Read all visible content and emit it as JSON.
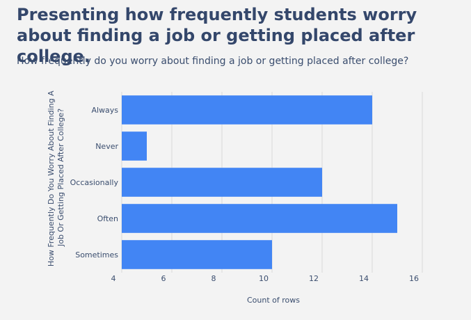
{
  "header": {
    "title": "Presenting how frequently students worry about finding a job or getting placed after college.",
    "subtitle": "How frequently do you worry about finding a job or getting placed after college?"
  },
  "chart_data": {
    "type": "bar",
    "orientation": "horizontal",
    "categories": [
      "Always",
      "Never",
      "Occasionally",
      "Often",
      "Sometimes"
    ],
    "values": [
      14,
      5,
      12,
      15,
      10
    ],
    "xlabel": "Count of rows",
    "ylabel": "How Frequently Do You Worry About Finding A Job Or Getting Placed After College?",
    "ylabel_lines": [
      "How Frequently Do You Worry About Finding A",
      "Job Or Getting Placed After College?"
    ],
    "xlim": [
      4,
      16
    ],
    "xticks": [
      4,
      6,
      8,
      10,
      12,
      14,
      16
    ],
    "grid": true,
    "bar_color": "#4285f4"
  }
}
